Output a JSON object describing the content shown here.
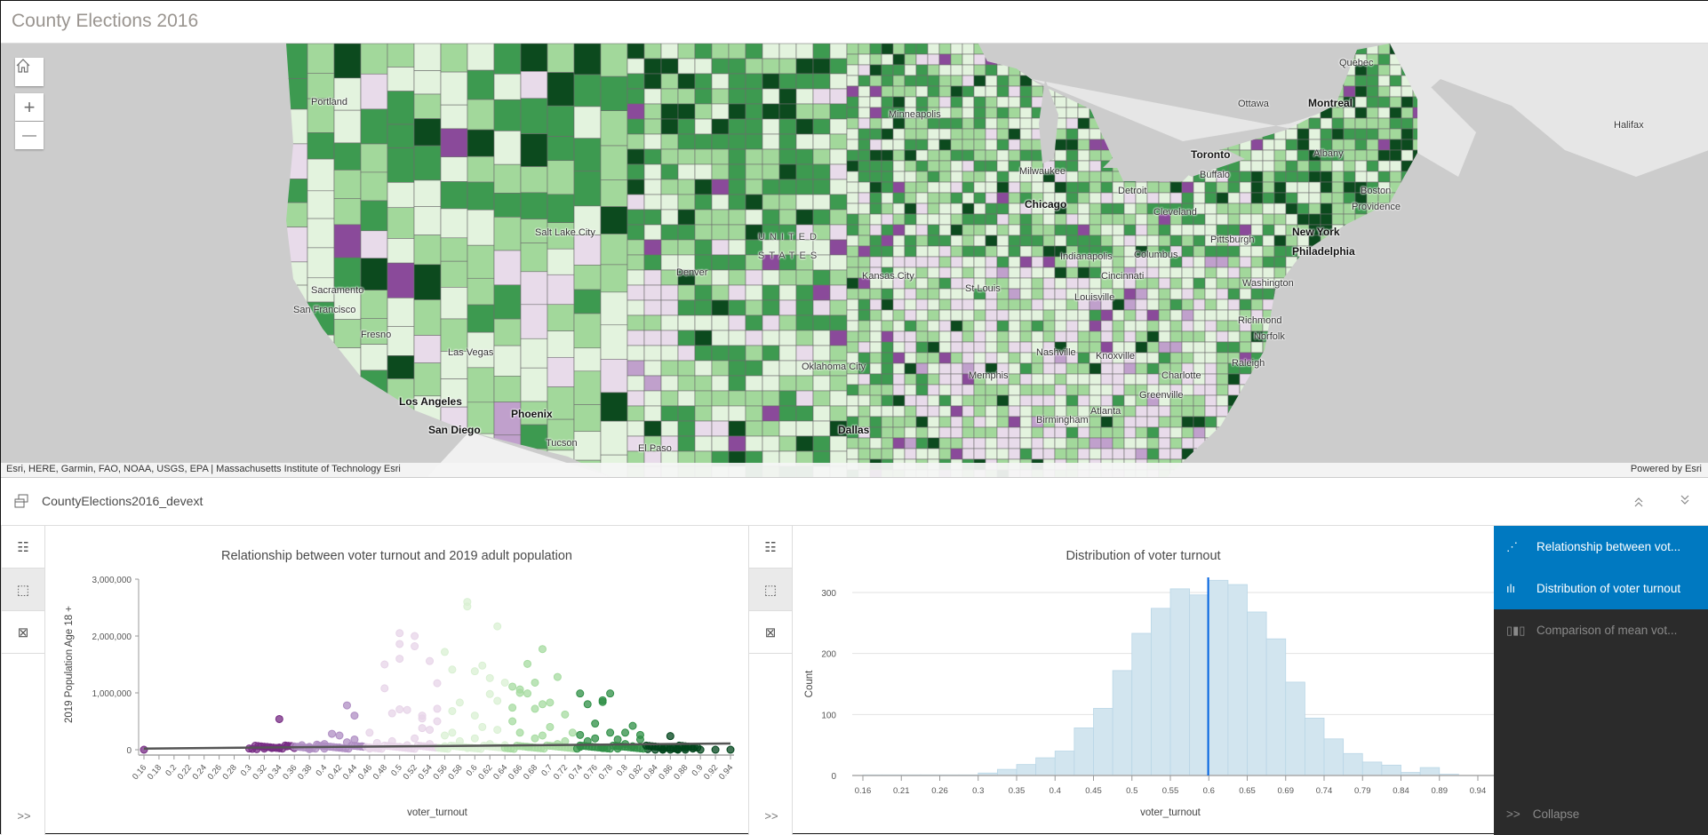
{
  "header": {
    "title": "County Elections 2016"
  },
  "map": {
    "zoom_in": "+",
    "zoom_out": "—",
    "labels": [
      {
        "text": "Quebec",
        "bold": false
      },
      {
        "text": "Ottawa",
        "bold": false
      },
      {
        "text": "Montreal",
        "bold": true
      },
      {
        "text": "Halifax",
        "bold": false
      },
      {
        "text": "Portland",
        "bold": false
      },
      {
        "text": "Minneapolis",
        "bold": false
      },
      {
        "text": "Toronto",
        "bold": true
      },
      {
        "text": "Buffalo",
        "bold": false
      },
      {
        "text": "Albany",
        "bold": false
      },
      {
        "text": "Boston",
        "bold": false
      },
      {
        "text": "Milwaukee",
        "bold": false
      },
      {
        "text": "Detroit",
        "bold": false
      },
      {
        "text": "Chicago",
        "bold": true
      },
      {
        "text": "Cleveland",
        "bold": false
      },
      {
        "text": "Providence",
        "bold": false
      },
      {
        "text": "Salt Lake City",
        "bold": false
      },
      {
        "text": "UNITED",
        "bold": false
      },
      {
        "text": "STATES",
        "bold": false
      },
      {
        "text": "Denver",
        "bold": false
      },
      {
        "text": "Pittsburgh",
        "bold": false
      },
      {
        "text": "New York",
        "bold": true
      },
      {
        "text": "Philadelphia",
        "bold": true
      },
      {
        "text": "Indianapolis",
        "bold": false
      },
      {
        "text": "Columbus",
        "bold": false
      },
      {
        "text": "Kansas City",
        "bold": false
      },
      {
        "text": "Cincinnati",
        "bold": false
      },
      {
        "text": "Washington",
        "bold": false
      },
      {
        "text": "Sacramento",
        "bold": false
      },
      {
        "text": "San Francisco",
        "bold": false
      },
      {
        "text": "St Louis",
        "bold": false
      },
      {
        "text": "Louisville",
        "bold": false
      },
      {
        "text": "Richmond",
        "bold": false
      },
      {
        "text": "Norfolk",
        "bold": false
      },
      {
        "text": "Fresno",
        "bold": false
      },
      {
        "text": "Las Vegas",
        "bold": false
      },
      {
        "text": "Nashville",
        "bold": false
      },
      {
        "text": "Knoxville",
        "bold": false
      },
      {
        "text": "Raleigh",
        "bold": false
      },
      {
        "text": "Oklahoma City",
        "bold": false
      },
      {
        "text": "Charlotte",
        "bold": false
      },
      {
        "text": "Memphis",
        "bold": false
      },
      {
        "text": "Greenville",
        "bold": false
      },
      {
        "text": "Los Angeles",
        "bold": true
      },
      {
        "text": "Birmingham",
        "bold": false
      },
      {
        "text": "Atlanta",
        "bold": false
      },
      {
        "text": "Phoenix",
        "bold": true
      },
      {
        "text": "San Diego",
        "bold": true
      },
      {
        "text": "Dallas",
        "bold": true
      },
      {
        "text": "Tucson",
        "bold": false
      },
      {
        "text": "El Paso",
        "bold": false
      }
    ],
    "attribution": "Esri, HERE, Garmin, FAO, NOAA, USGS, EPA | Massachusetts Institute of Technology Esri",
    "powered_by": "Powered by Esri"
  },
  "panel": {
    "layer_name": "CountyElections2016_devext",
    "expand_label": ">>"
  },
  "sidepanel": {
    "items": [
      {
        "label": "Relationship between vot...",
        "selected": true
      },
      {
        "label": "Distribution of voter turnout",
        "selected": true
      },
      {
        "label": "Comparison of mean vot...",
        "selected": false
      }
    ],
    "collapse_label": "Collapse",
    "collapse_icon": ">>"
  },
  "colors": {
    "selected": "#0079c1",
    "sidepanel_bg": "#2b2b2b",
    "histogram_bar": "#d2e5ef",
    "mean_line": "#0062e0"
  },
  "chart_data": [
    {
      "type": "scatter",
      "title": "Relationship between voter turnout and 2019 adult population",
      "xlabel": "voter_turnout",
      "ylabel": "2019 Population Age 18 +",
      "xlim": [
        0.16,
        0.94
      ],
      "ylim": [
        0,
        3000000
      ],
      "xticks": [
        "0.16",
        "0.18",
        "0.2",
        "0.22",
        "0.24",
        "0.26",
        "0.28",
        "0.3",
        "0.32",
        "0.34",
        "0.36",
        "0.38",
        "0.4",
        "0.42",
        "0.44",
        "0.46",
        "0.48",
        "0.5",
        "0.52",
        "0.54",
        "0.56",
        "0.58",
        "0.6",
        "0.62",
        "0.64",
        "0.66",
        "0.68",
        "0.7",
        "0.72",
        "0.74",
        "0.76",
        "0.78",
        "0.8",
        "0.82",
        "0.84",
        "0.86",
        "0.88",
        "0.9",
        "0.92",
        "0.94"
      ],
      "yticks": [
        {
          "value": 0,
          "label": "0"
        },
        {
          "value": 1000000,
          "label": "1,000,000"
        },
        {
          "value": 2000000,
          "label": "2,000,000"
        },
        {
          "value": 3000000,
          "label": "3,000,000"
        }
      ],
      "trendline": [
        [
          0.16,
          20000
        ],
        [
          0.94,
          110000
        ]
      ],
      "classes": [
        {
          "max": 0.36,
          "color": "#762a83"
        },
        {
          "max": 0.455,
          "color": "#af8dc3"
        },
        {
          "max": 0.55,
          "color": "#e7d4e8"
        },
        {
          "max": 0.64,
          "color": "#d9f0d3"
        },
        {
          "max": 0.735,
          "color": "#a6dba0"
        },
        {
          "max": 0.825,
          "color": "#2f8f46"
        },
        {
          "max": 1,
          "color": "#00441b"
        }
      ],
      "points": [
        [
          0.16,
          0
        ],
        [
          0.31,
          10000
        ],
        [
          0.32,
          20000
        ],
        [
          0.33,
          30000
        ],
        [
          0.34,
          40000
        ],
        [
          0.35,
          60000
        ],
        [
          0.34,
          540000
        ],
        [
          0.36,
          30000
        ],
        [
          0.37,
          80000
        ],
        [
          0.38,
          50000
        ],
        [
          0.39,
          90000
        ],
        [
          0.4,
          20000
        ],
        [
          0.41,
          280000
        ],
        [
          0.42,
          250000
        ],
        [
          0.43,
          130000
        ],
        [
          0.43,
          780000
        ],
        [
          0.44,
          600000
        ],
        [
          0.44,
          180000
        ],
        [
          0.45,
          60000
        ],
        [
          0.42,
          40000
        ],
        [
          0.38,
          10000
        ],
        [
          0.4,
          100000
        ],
        [
          0.46,
          300000
        ],
        [
          0.47,
          120000
        ],
        [
          0.48,
          1500000
        ],
        [
          0.48,
          1080000
        ],
        [
          0.49,
          640000
        ],
        [
          0.5,
          2050000
        ],
        [
          0.5,
          1860000
        ],
        [
          0.5,
          710000
        ],
        [
          0.5,
          1600000
        ],
        [
          0.51,
          700000
        ],
        [
          0.52,
          1820000
        ],
        [
          0.52,
          2000000
        ],
        [
          0.53,
          550000
        ],
        [
          0.53,
          600000
        ],
        [
          0.53,
          380000
        ],
        [
          0.54,
          1560000
        ],
        [
          0.54,
          350000
        ],
        [
          0.47,
          40000
        ],
        [
          0.49,
          150000
        ],
        [
          0.51,
          80000
        ],
        [
          0.52,
          200000
        ],
        [
          0.54,
          100000
        ],
        [
          0.46,
          20000
        ],
        [
          0.5,
          50000
        ],
        [
          0.55,
          1170000
        ],
        [
          0.56,
          1720000
        ],
        [
          0.55,
          720000
        ],
        [
          0.55,
          500000
        ],
        [
          0.56,
          250000
        ],
        [
          0.57,
          1410000
        ],
        [
          0.57,
          680000
        ],
        [
          0.58,
          830000
        ],
        [
          0.59,
          2600000
        ],
        [
          0.59,
          2520000
        ],
        [
          0.6,
          1380000
        ],
        [
          0.6,
          600000
        ],
        [
          0.61,
          1480000
        ],
        [
          0.62,
          1260000
        ],
        [
          0.62,
          980000
        ],
        [
          0.63,
          2170000
        ],
        [
          0.63,
          860000
        ],
        [
          0.57,
          300000
        ],
        [
          0.58,
          150000
        ],
        [
          0.6,
          200000
        ],
        [
          0.61,
          400000
        ],
        [
          0.62,
          100000
        ],
        [
          0.56,
          60000
        ],
        [
          0.59,
          30000
        ],
        [
          0.63,
          350000
        ],
        [
          0.64,
          1180000
        ],
        [
          0.65,
          1110000
        ],
        [
          0.65,
          740000
        ],
        [
          0.66,
          1000000
        ],
        [
          0.66,
          1060000
        ],
        [
          0.67,
          990000
        ],
        [
          0.67,
          1510000
        ],
        [
          0.68,
          1180000
        ],
        [
          0.68,
          720000
        ],
        [
          0.69,
          1770000
        ],
        [
          0.69,
          800000
        ],
        [
          0.7,
          830000
        ],
        [
          0.71,
          1280000
        ],
        [
          0.72,
          620000
        ],
        [
          0.65,
          500000
        ],
        [
          0.66,
          300000
        ],
        [
          0.68,
          200000
        ],
        [
          0.7,
          400000
        ],
        [
          0.72,
          150000
        ],
        [
          0.64,
          80000
        ],
        [
          0.67,
          50000
        ],
        [
          0.69,
          250000
        ],
        [
          0.71,
          100000
        ],
        [
          0.73,
          300000
        ],
        [
          0.74,
          990000
        ],
        [
          0.75,
          800000
        ],
        [
          0.77,
          870000
        ],
        [
          0.77,
          840000
        ],
        [
          0.78,
          990000
        ],
        [
          0.76,
          460000
        ],
        [
          0.78,
          300000
        ],
        [
          0.8,
          300000
        ],
        [
          0.81,
          420000
        ],
        [
          0.82,
          260000
        ],
        [
          0.82,
          180000
        ],
        [
          0.74,
          260000
        ],
        [
          0.75,
          150000
        ],
        [
          0.76,
          200000
        ],
        [
          0.79,
          180000
        ],
        [
          0.8,
          100000
        ],
        [
          0.74,
          50000
        ],
        [
          0.77,
          30000
        ],
        [
          0.79,
          20000
        ],
        [
          0.81,
          60000
        ],
        [
          0.83,
          10000
        ],
        [
          0.84,
          0
        ],
        [
          0.85,
          5000
        ],
        [
          0.86,
          240000
        ],
        [
          0.86,
          0
        ],
        [
          0.87,
          10000
        ],
        [
          0.88,
          0
        ],
        [
          0.89,
          20000
        ],
        [
          0.9,
          0
        ],
        [
          0.92,
          0
        ],
        [
          0.94,
          0
        ],
        [
          0.85,
          0
        ],
        [
          0.87,
          0
        ],
        [
          0.88,
          30000
        ]
      ]
    },
    {
      "type": "bar",
      "subtype": "histogram",
      "title": "Distribution of voter turnout",
      "xlabel": "voter_turnout",
      "ylabel": "Count",
      "xlim": [
        0.16,
        0.94
      ],
      "ylim": [
        0,
        320
      ],
      "bin_width": 0.024375,
      "counts": [
        1,
        1,
        1,
        1,
        1,
        1,
        4,
        10,
        18,
        29,
        40,
        78,
        110,
        172,
        233,
        274,
        306,
        296,
        320,
        313,
        268,
        224,
        153,
        94,
        60,
        36,
        22,
        17,
        5,
        13,
        2,
        0
      ],
      "xticks": [
        "0.16",
        "0.21",
        "0.26",
        "0.3",
        "0.35",
        "0.4",
        "0.45",
        "0.5",
        "0.55",
        "0.6",
        "0.65",
        "0.69",
        "0.74",
        "0.79",
        "0.84",
        "0.89",
        "0.94"
      ],
      "yticks": [
        0,
        100,
        200,
        300
      ],
      "mean_line": 0.598
    }
  ]
}
